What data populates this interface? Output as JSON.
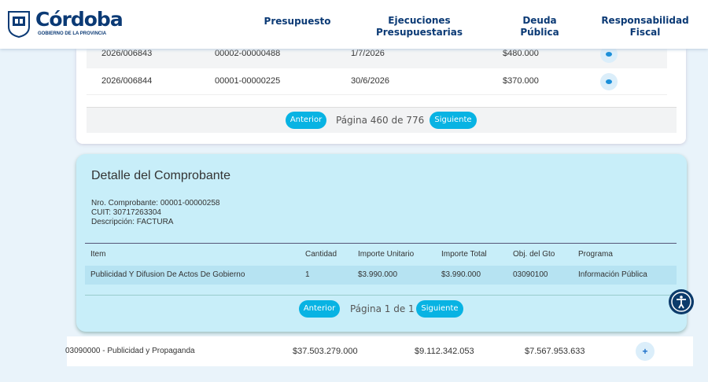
{
  "header": {
    "logo_title": "Córdoba",
    "logo_subtitle": "GOBIERNO DE LA PROVINCIA",
    "nav": [
      "Presupuesto",
      "Ejecuciones Presupuestarias",
      "Deuda Pública",
      "Responsabilidad Fiscal"
    ]
  },
  "table": {
    "rows": [
      [
        "2026/006843",
        "00002-00000488",
        "1/7/2026",
        "$480.000"
      ],
      [
        "2026/006844",
        "00001-00000225",
        "30/6/2026",
        "$370.000"
      ]
    ],
    "pagination": {
      "previous": "Anterior",
      "page": "Página 460 de 776",
      "next": "Siguiente"
    }
  },
  "detail": {
    "title": "Detalle del Comprobante",
    "lines": [
      "Nro. Comprobante: 00001-00000258",
      "CUIT: 30717263304",
      "Descripción: FACTURA"
    ],
    "table": {
      "headers": [
        "Item",
        "Cantidad",
        "Importe Unitario",
        "Importe Total",
        "Obj. del Gto",
        "Programa"
      ],
      "rows": [
        [
          "Publicidad Y Difusion De Actos De Gobierno",
          "1",
          "$3.990.000",
          "$3.990.000",
          "03090100",
          "Información Pública"
        ]
      ]
    },
    "pagination": {
      "previous": "Anterior",
      "page": "Página 1 de 1",
      "next": "Siguiente"
    }
  },
  "bottom_row": {
    "cells": [
      "03090000 - Publicidad y Propaganda",
      "$37.503.279.000",
      "$9.112.342.053",
      "$7.567.953.633"
    ],
    "action": "+"
  }
}
